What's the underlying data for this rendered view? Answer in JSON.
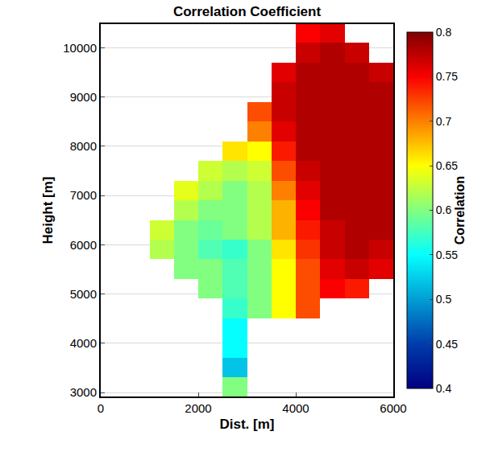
{
  "chart_data": {
    "type": "heatmap",
    "title": "Correlation Coefficient",
    "x_label": "Dist. [m]",
    "y_label": "Height [m]",
    "colorbar_label": "Correlation",
    "x": [
      250,
      750,
      1250,
      1750,
      2250,
      2750,
      3250,
      3750,
      4250,
      4750,
      5250,
      5750
    ],
    "y": [
      3100,
      3500,
      3900,
      4300,
      4700,
      5100,
      5500,
      5900,
      6300,
      6700,
      7100,
      7500,
      7900,
      8300,
      8700,
      9100,
      9500,
      9900,
      10300
    ],
    "z": [
      [
        null,
        null,
        null,
        null,
        null,
        0.6,
        null,
        null,
        null,
        null,
        null,
        null
      ],
      [
        null,
        null,
        null,
        null,
        null,
        0.52,
        null,
        null,
        null,
        null,
        null,
        null
      ],
      [
        null,
        null,
        null,
        null,
        null,
        0.55,
        null,
        null,
        null,
        null,
        null,
        null
      ],
      [
        null,
        null,
        null,
        null,
        null,
        0.55,
        null,
        null,
        null,
        null,
        null,
        null
      ],
      [
        null,
        null,
        null,
        null,
        null,
        0.57,
        0.6,
        0.65,
        0.72,
        null,
        null,
        null
      ],
      [
        null,
        null,
        null,
        null,
        0.6,
        0.58,
        0.6,
        0.65,
        0.72,
        0.75,
        0.74,
        null
      ],
      [
        null,
        null,
        null,
        0.6,
        0.6,
        0.58,
        0.6,
        0.65,
        0.72,
        0.76,
        0.77,
        0.76
      ],
      [
        null,
        null,
        0.62,
        0.6,
        0.58,
        0.57,
        0.6,
        0.66,
        0.73,
        0.77,
        0.78,
        0.77
      ],
      [
        null,
        null,
        0.63,
        0.6,
        0.59,
        0.6,
        0.62,
        0.68,
        0.74,
        0.77,
        0.78,
        0.78
      ],
      [
        null,
        null,
        null,
        0.62,
        0.6,
        0.6,
        0.62,
        0.68,
        0.75,
        0.78,
        0.78,
        0.78
      ],
      [
        null,
        null,
        null,
        0.64,
        0.62,
        0.6,
        0.62,
        0.7,
        0.76,
        0.78,
        0.78,
        0.78
      ],
      [
        null,
        null,
        null,
        null,
        0.63,
        0.62,
        0.63,
        0.72,
        0.77,
        0.78,
        0.78,
        0.78
      ],
      [
        null,
        null,
        null,
        null,
        null,
        0.66,
        0.65,
        0.74,
        0.78,
        0.78,
        0.78,
        0.78
      ],
      [
        null,
        null,
        null,
        null,
        null,
        null,
        0.7,
        0.76,
        0.78,
        0.78,
        0.78,
        0.78
      ],
      [
        null,
        null,
        null,
        null,
        null,
        null,
        0.72,
        0.77,
        0.78,
        0.78,
        0.78,
        0.78
      ],
      [
        null,
        null,
        null,
        null,
        null,
        null,
        null,
        0.77,
        0.78,
        0.78,
        0.78,
        0.78
      ],
      [
        null,
        null,
        null,
        null,
        null,
        null,
        null,
        0.76,
        0.78,
        0.78,
        0.78,
        0.77
      ],
      [
        null,
        null,
        null,
        null,
        null,
        null,
        null,
        null,
        0.77,
        0.78,
        0.77,
        null
      ],
      [
        null,
        null,
        null,
        null,
        null,
        null,
        null,
        null,
        0.75,
        0.76,
        null,
        null
      ]
    ],
    "zlim": [
      0.4,
      0.8
    ],
    "zticks": [
      0.4,
      0.45,
      0.5,
      0.55,
      0.6,
      0.65,
      0.7,
      0.75,
      0.8
    ],
    "xlim": [
      0,
      6000
    ],
    "xticks": [
      0,
      2000,
      4000,
      6000
    ],
    "ylim": [
      2920,
      10480
    ],
    "yticks": [
      3000,
      4000,
      5000,
      6000,
      7000,
      8000,
      9000,
      10000
    ],
    "grid": true
  }
}
